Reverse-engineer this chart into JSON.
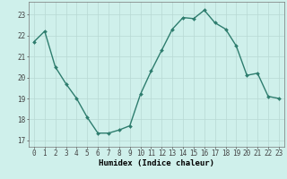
{
  "x": [
    0,
    1,
    2,
    3,
    4,
    5,
    6,
    7,
    8,
    9,
    10,
    11,
    12,
    13,
    14,
    15,
    16,
    17,
    18,
    19,
    20,
    21,
    22,
    23
  ],
  "y": [
    21.7,
    22.2,
    20.5,
    19.7,
    19.0,
    18.1,
    17.35,
    17.35,
    17.5,
    17.7,
    19.2,
    20.3,
    21.3,
    22.3,
    22.85,
    22.8,
    23.2,
    22.6,
    22.3,
    21.5,
    20.1,
    20.2,
    19.1,
    19.0
  ],
  "xlabel": "Humidex (Indice chaleur)",
  "ylim": [
    16.7,
    23.6
  ],
  "xlim": [
    -0.5,
    23.5
  ],
  "yticks": [
    17,
    18,
    19,
    20,
    21,
    22,
    23
  ],
  "xticks": [
    0,
    1,
    2,
    3,
    4,
    5,
    6,
    7,
    8,
    9,
    10,
    11,
    12,
    13,
    14,
    15,
    16,
    17,
    18,
    19,
    20,
    21,
    22,
    23
  ],
  "line_color": "#2e7d6e",
  "bg_color": "#cff0eb",
  "grid_color": "#b8d8d4",
  "marker": "D",
  "marker_size": 2.0,
  "line_width": 1.0,
  "label_fontsize": 6.5,
  "tick_fontsize": 5.5
}
